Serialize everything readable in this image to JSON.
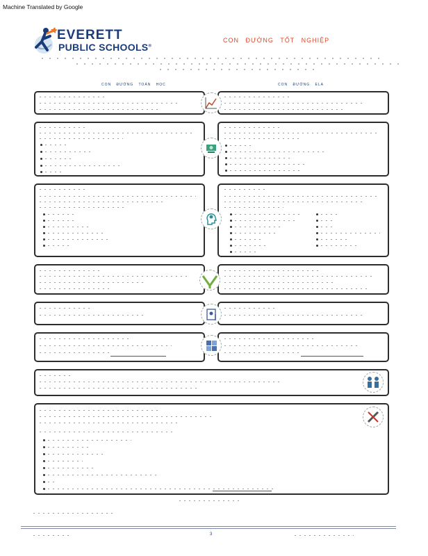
{
  "banner": "Machine Translated by Google",
  "logo": {
    "line1": "EVERETT",
    "line2": "PUBLIC SCHOOLS",
    "mark": "®"
  },
  "title": "CON ĐƯỜNG TỐT NGHIỆP",
  "left_heading": "CON ĐƯỜNG TOÁN HỌC",
  "right_heading": "CON ĐƯỜNG ELA",
  "page_number": "3",
  "icons": [
    "chart-trend-icon",
    "money-icon",
    "head-gears-icon",
    "road-junction-icon",
    "certificate-icon",
    "calculator-icon",
    "soldiers-icon",
    "pencil-ruler-icon"
  ],
  "colors": {
    "brand": "#1a3b7a",
    "title": "#d94a2a",
    "border": "#2d2d2d"
  }
}
